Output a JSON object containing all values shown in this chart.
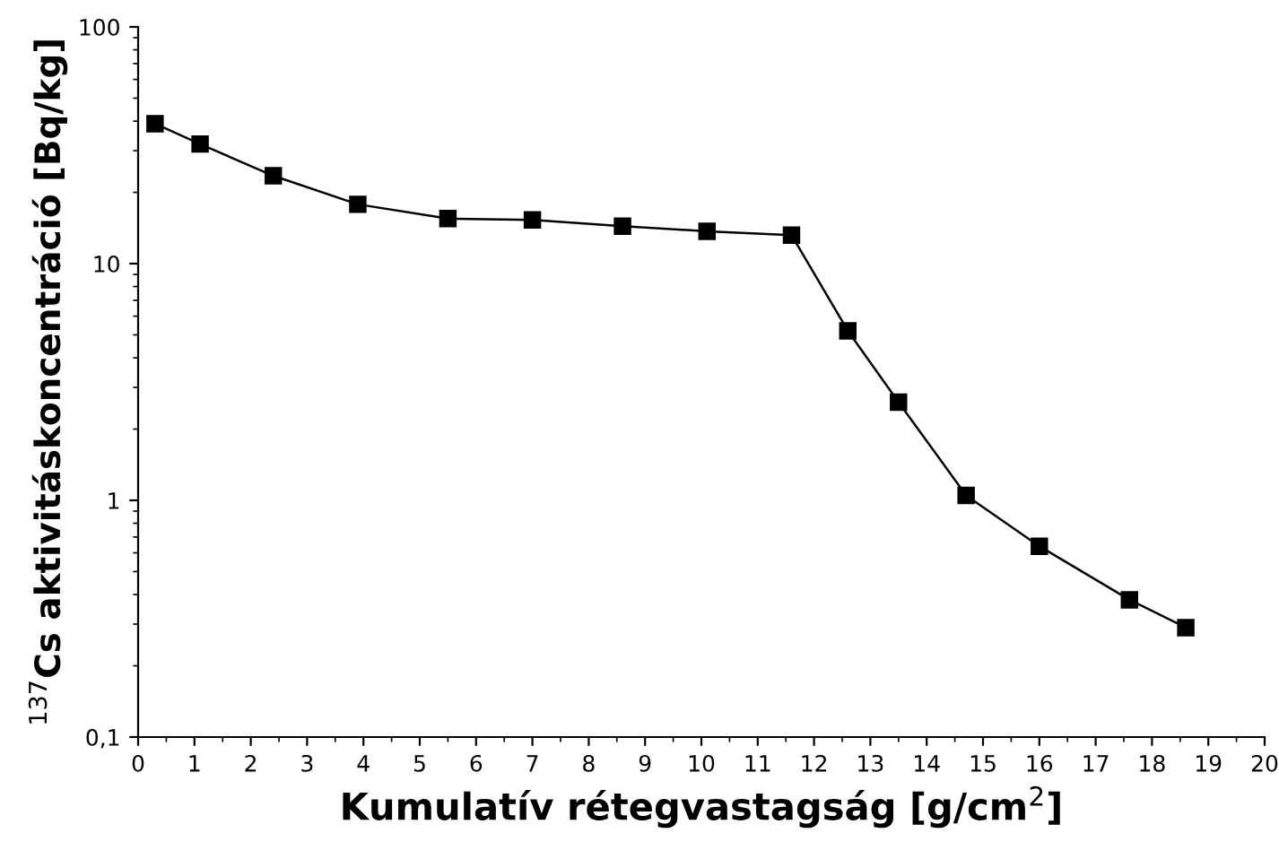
{
  "chart_data": {
    "type": "line",
    "xlabel": "Kumulatív rétegvastagság [g/cm$^{2}$]",
    "ylabel": "$^{137}$Cs aktivitáskoncentráció [Bq/kg]",
    "x": [
      0.3,
      1.1,
      2.4,
      3.9,
      5.5,
      7.0,
      8.6,
      10.1,
      11.6,
      12.6,
      13.5,
      14.7,
      16.0,
      17.6,
      18.6
    ],
    "series": [
      {
        "color": "#000000",
        "values": [
          39,
          32,
          23.5,
          17.8,
          15.5,
          15.3,
          14.4,
          13.7,
          13.2,
          5.2,
          2.6,
          1.05,
          0.64,
          0.38,
          0.29
        ]
      }
    ],
    "log": "y",
    "marker": "square",
    "line_style": "solid",
    "grid": false,
    "legend": false,
    "xlim": [
      0,
      20
    ],
    "xticks": [
      0,
      1,
      2,
      3,
      4,
      5,
      6,
      7,
      8,
      9,
      10,
      11,
      12,
      13,
      14,
      15,
      16,
      17,
      18,
      19,
      20
    ],
    "ylim": [
      0.1,
      100
    ],
    "yticks": [
      {
        "value": 0.1,
        "label": "0,1"
      },
      1,
      10,
      100
    ]
  }
}
